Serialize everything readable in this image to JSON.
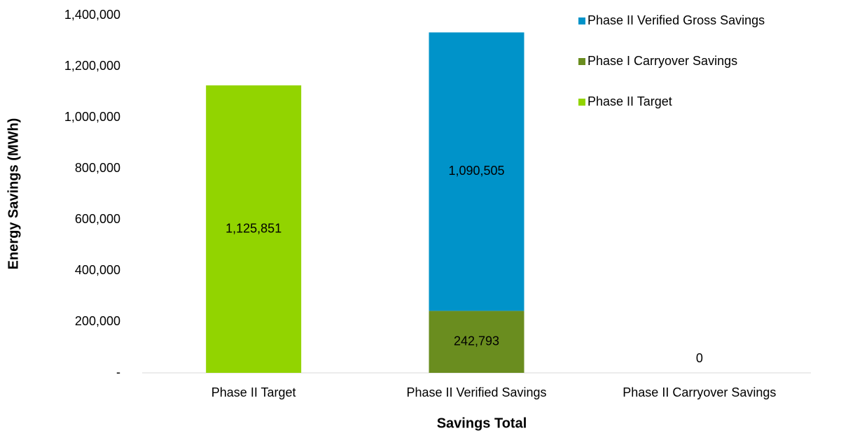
{
  "chart_data": {
    "type": "stacked_bar",
    "x_label": "Savings Total",
    "y_label": "Energy Savings (MWh)",
    "categories": [
      "Phase II Target",
      "Phase II Verified Savings",
      "Phase II Carryover Savings"
    ],
    "series": [
      {
        "name": "Phase II Verified Gross Savings",
        "color": "#0093c9",
        "values": [
          null,
          1090505,
          null
        ],
        "value_labels": [
          null,
          "1,090,505",
          null
        ]
      },
      {
        "name": "Phase I Carryover Savings",
        "color": "#6a8d1f",
        "values": [
          null,
          242793,
          0
        ],
        "value_labels": [
          null,
          "242,793",
          "0"
        ]
      },
      {
        "name": "Phase II Target",
        "color": "#92d400",
        "values": [
          1125851,
          null,
          null
        ],
        "value_labels": [
          "1,125,851",
          null,
          null
        ]
      }
    ],
    "ylim": [
      0,
      1400000
    ],
    "yticks": [
      {
        "value": 0,
        "label": "-"
      },
      {
        "value": 200000,
        "label": "200,000"
      },
      {
        "value": 400000,
        "label": "400,000"
      },
      {
        "value": 600000,
        "label": "600,000"
      },
      {
        "value": 800000,
        "label": "800,000"
      },
      {
        "value": 1000000,
        "label": "1,000,000"
      },
      {
        "value": 1200000,
        "label": "1,200,000"
      },
      {
        "value": 1400000,
        "label": "1,400,000"
      }
    ],
    "legend": "top-right"
  }
}
